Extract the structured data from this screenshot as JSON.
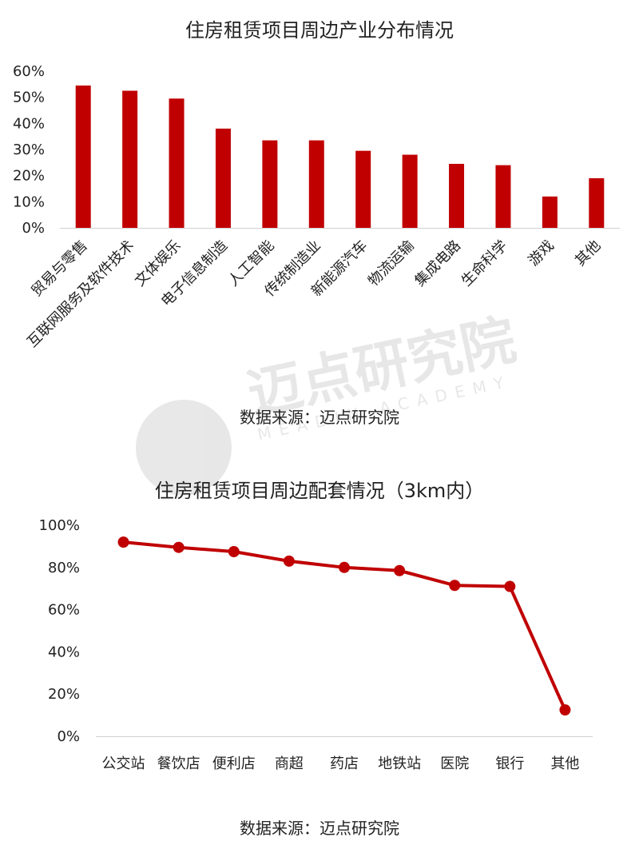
{
  "watermark": {
    "text": "迈点研究院",
    "sub": "MEADIN ACADEMY"
  },
  "charts": [
    {
      "title": "住房租赁项目周边产业分布情况",
      "source": "数据来源：迈点研究院"
    },
    {
      "title": "住房租赁项目周边配套情况（3km内）",
      "source": "数据来源：迈点研究院"
    }
  ],
  "chart_data": [
    {
      "type": "bar",
      "title": "住房租赁项目周边产业分布情况",
      "categories": [
        "贸易与零售",
        "互联网服务及软件技术",
        "文体娱乐",
        "电子信息制造",
        "人工智能",
        "传统制造业",
        "新能源汽车",
        "物流运输",
        "集成电路",
        "生命科学",
        "游戏",
        "其他"
      ],
      "values": [
        54.5,
        52.5,
        49.5,
        38,
        33.5,
        33.5,
        29.5,
        28,
        24.5,
        24,
        12,
        19
      ],
      "ylim": [
        0,
        60
      ],
      "yticks": [
        "0%",
        "10%",
        "20%",
        "30%",
        "40%",
        "50%",
        "60%"
      ],
      "color": "#c00000",
      "grid": false
    },
    {
      "type": "line",
      "title": "住房租赁项目周边配套情况（3km内）",
      "categories": [
        "公交站",
        "餐饮店",
        "便利店",
        "商超",
        "药店",
        "地铁站",
        "医院",
        "银行",
        "其他"
      ],
      "values": [
        92,
        89.5,
        87.5,
        83,
        80,
        78.5,
        71.5,
        71,
        12.5
      ],
      "ylim": [
        0,
        100
      ],
      "yticks": [
        "0%",
        "20%",
        "40%",
        "60%",
        "80%",
        "100%"
      ],
      "color": "#c00000",
      "grid": false
    }
  ]
}
